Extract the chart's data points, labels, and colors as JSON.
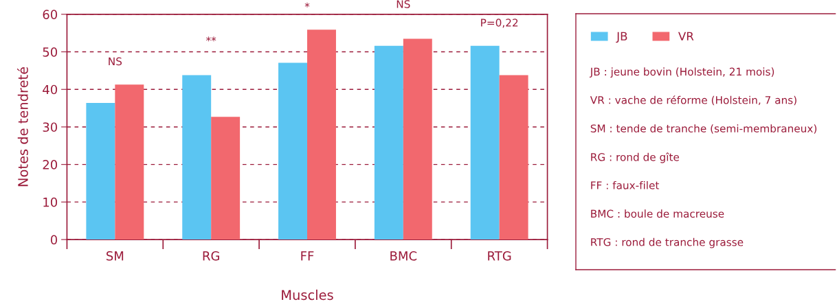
{
  "chart_data": {
    "type": "bar",
    "xlabel": "Muscles",
    "ylabel": "Notes de tendreté",
    "categories": [
      "SM",
      "RG",
      "FF",
      "BMC",
      "RTG"
    ],
    "series": [
      {
        "name": "JB",
        "color": "#5bc5f2",
        "values": [
          36.4,
          43.8,
          47.1,
          51.6,
          51.6
        ]
      },
      {
        "name": "VR",
        "color": "#f2686e",
        "values": [
          41.3,
          32.7,
          55.9,
          53.5,
          43.8
        ]
      }
    ],
    "ylim": [
      0,
      60
    ],
    "yticks": [
      0,
      10,
      20,
      30,
      40,
      50,
      60
    ],
    "grid": "y",
    "legend": "right",
    "annotations": [
      "NS",
      "**",
      "*",
      "NS",
      "P=0,22",
      "JB : jeune bovin (Holstein, 21 mois)",
      "VR : vache de réforme (Holstein, 7 ans)",
      "SM : tende de tranche (semi-membraneux)",
      "RG : rond de gîte",
      "FF : faux-filet",
      "BMC : boule de macreuse",
      "RTG : rond de tranche grasse"
    ]
  }
}
